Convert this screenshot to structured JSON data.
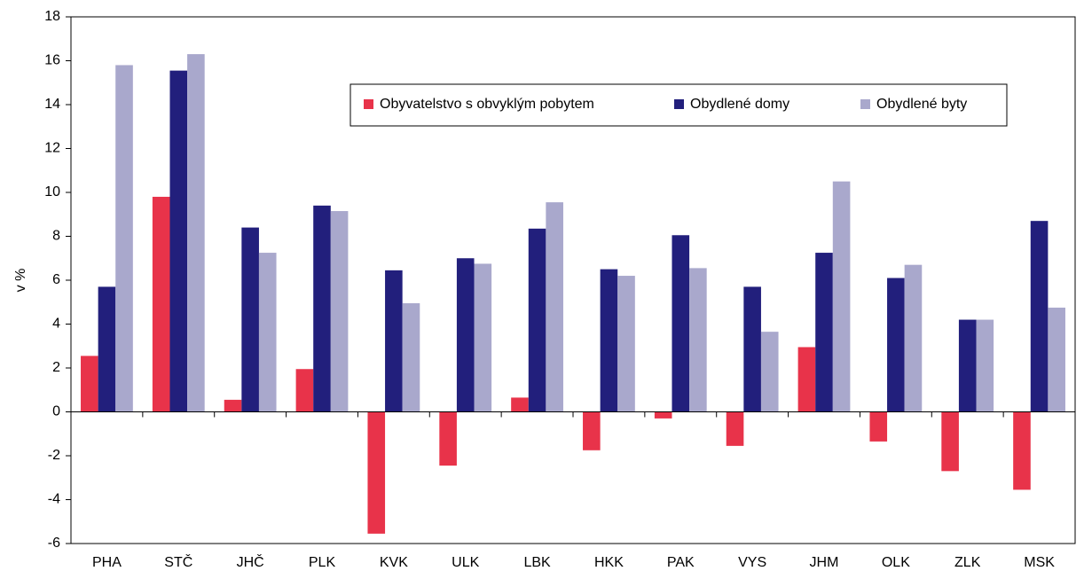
{
  "chart_data": {
    "type": "bar",
    "ylabel": "v %",
    "categories": [
      "PHA",
      "STČ",
      "JHČ",
      "PLK",
      "KVK",
      "ULK",
      "LBK",
      "HKK",
      "PAK",
      "VYS",
      "JHM",
      "OLK",
      "ZLK",
      "MSK"
    ],
    "series": [
      {
        "name": "Obyvatelstvo s obvyklým pobytem",
        "color": "#e8334a",
        "values": [
          2.55,
          9.8,
          0.55,
          1.95,
          -5.55,
          -2.45,
          0.65,
          -1.75,
          -0.3,
          -1.55,
          2.95,
          -1.35,
          -2.7,
          -3.55
        ]
      },
      {
        "name": "Obydlené domy",
        "color": "#221f7c",
        "values": [
          5.7,
          15.55,
          8.4,
          9.4,
          6.45,
          7.0,
          8.35,
          6.5,
          8.05,
          5.7,
          7.25,
          6.1,
          4.2,
          8.7
        ]
      },
      {
        "name": "Obydlené byty",
        "color": "#a9a8cc",
        "values": [
          15.8,
          16.3,
          7.25,
          9.15,
          4.95,
          6.75,
          9.55,
          6.2,
          6.55,
          3.65,
          10.5,
          6.7,
          4.2,
          4.75
        ]
      }
    ],
    "ylim": [
      -6,
      18
    ],
    "yticks": [
      -6,
      -4,
      -2,
      0,
      2,
      4,
      6,
      8,
      10,
      12,
      14,
      16,
      18
    ],
    "grid": false,
    "legend": "top-right"
  }
}
